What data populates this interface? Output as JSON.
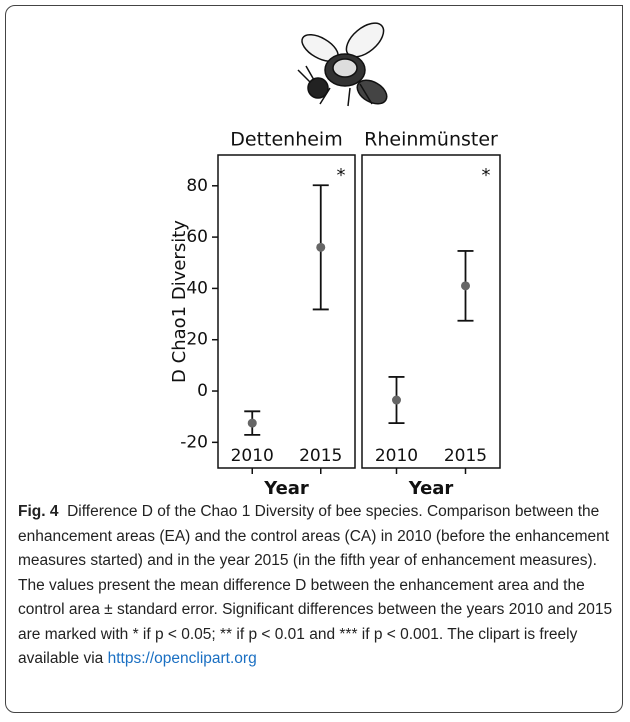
{
  "chart_data": [
    {
      "type": "errorbar",
      "title": "Dettenheim",
      "xlabel": "Year",
      "ylabel": "D Chao1 Diversity",
      "categories": [
        "2010",
        "2015"
      ],
      "values": [
        -12.5,
        56
      ],
      "errors": [
        4.6,
        24.2
      ],
      "ylim": [
        -30,
        92
      ],
      "yticks": [
        -20,
        0,
        20,
        40,
        60,
        80
      ],
      "annotation": "*",
      "color": "#666666"
    },
    {
      "type": "errorbar",
      "title": "Rheinmünster",
      "xlabel": "Year",
      "categories": [
        "2010",
        "2015"
      ],
      "values": [
        -3.5,
        41
      ],
      "errors": [
        9,
        13.6
      ],
      "ylim": [
        -30,
        92
      ],
      "annotation": "*",
      "color": "#666666"
    }
  ],
  "caption": {
    "label": "Fig. 4",
    "text": "Difference D of the Chao 1 Diversity of bee species. Comparison between the enhancement areas (EA) and the control areas (CA) in 2010 (before the enhancement measures started) and in the year 2015 (in the fifth year of enhancement measures). The values present the mean difference D between the enhancement area and the control area ± standard error. Significant differences between the years 2010 and 2015 are marked with * if p < 0.05; ** if p < 0.01 and *** if p < 0.001. The clipart is freely available via",
    "link": "https://openclipart.org"
  }
}
